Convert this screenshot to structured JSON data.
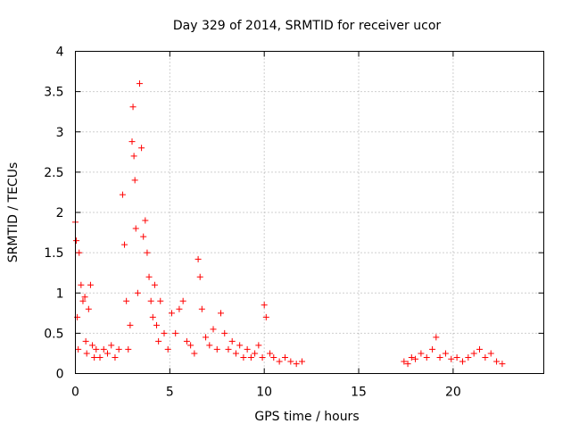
{
  "chart_data": {
    "type": "scatter",
    "title": "Day 329 of 2014, SRMTID for receiver ucor",
    "xlabel": "GPS time / hours",
    "ylabel": "SRMTID / TECUs",
    "xlim": [
      0,
      24.8
    ],
    "ylim": [
      0,
      4
    ],
    "xticks": [
      0,
      5,
      10,
      15,
      20
    ],
    "xtick_labels": [
      "0",
      "5",
      "10",
      "15",
      "20"
    ],
    "yticks": [
      0,
      0.5,
      1,
      1.5,
      2,
      2.5,
      3,
      3.5,
      4
    ],
    "ytick_labels": [
      "0",
      "0.5",
      "1",
      "1.5",
      "2",
      "2.5",
      "3",
      "3.5",
      "4"
    ],
    "grid": true,
    "marker": "plus",
    "series": [
      {
        "name": "SRMTID",
        "color": "#ff0000",
        "x": [
          0.0,
          0.05,
          0.1,
          0.15,
          0.2,
          0.3,
          0.4,
          0.5,
          0.55,
          0.6,
          0.7,
          0.8,
          0.9,
          1.0,
          1.1,
          1.3,
          1.5,
          1.7,
          1.9,
          2.1,
          2.3,
          2.5,
          2.6,
          2.7,
          2.8,
          2.9,
          3.0,
          3.05,
          3.1,
          3.15,
          3.2,
          3.3,
          3.4,
          3.5,
          3.6,
          3.7,
          3.8,
          3.9,
          4.0,
          4.1,
          4.2,
          4.3,
          4.4,
          4.5,
          4.7,
          4.9,
          5.1,
          5.3,
          5.5,
          5.7,
          5.9,
          6.1,
          6.3,
          6.5,
          6.6,
          6.7,
          6.9,
          7.1,
          7.3,
          7.5,
          7.7,
          7.9,
          8.1,
          8.3,
          8.5,
          8.7,
          8.9,
          9.1,
          9.3,
          9.5,
          9.7,
          9.9,
          10.0,
          10.1,
          10.3,
          10.5,
          10.8,
          11.1,
          11.4,
          11.7,
          12.0,
          17.4,
          17.6,
          17.8,
          18.0,
          18.3,
          18.6,
          18.9,
          19.1,
          19.3,
          19.6,
          19.9,
          20.2,
          20.5,
          20.8,
          21.1,
          21.4,
          21.7,
          22.0,
          22.3,
          22.6
        ],
        "y": [
          1.88,
          1.65,
          0.7,
          0.3,
          1.5,
          1.1,
          0.9,
          0.95,
          0.4,
          0.25,
          0.8,
          1.1,
          0.35,
          0.2,
          0.3,
          0.2,
          0.3,
          0.25,
          0.35,
          0.2,
          0.3,
          2.22,
          1.6,
          0.9,
          0.3,
          0.6,
          2.88,
          3.31,
          2.7,
          2.4,
          1.8,
          1.0,
          3.6,
          2.8,
          1.7,
          1.9,
          1.5,
          1.2,
          0.9,
          0.7,
          1.1,
          0.6,
          0.4,
          0.9,
          0.5,
          0.3,
          0.75,
          0.5,
          0.8,
          0.9,
          0.4,
          0.35,
          0.25,
          1.42,
          1.2,
          0.8,
          0.45,
          0.35,
          0.55,
          0.3,
          0.75,
          0.5,
          0.3,
          0.4,
          0.25,
          0.35,
          0.2,
          0.3,
          0.2,
          0.25,
          0.35,
          0.2,
          0.85,
          0.7,
          0.25,
          0.2,
          0.15,
          0.2,
          0.15,
          0.12,
          0.15,
          0.15,
          0.12,
          0.2,
          0.18,
          0.25,
          0.2,
          0.3,
          0.45,
          0.2,
          0.25,
          0.18,
          0.2,
          0.15,
          0.2,
          0.25,
          0.3,
          0.2,
          0.25,
          0.15,
          0.12
        ]
      }
    ]
  }
}
